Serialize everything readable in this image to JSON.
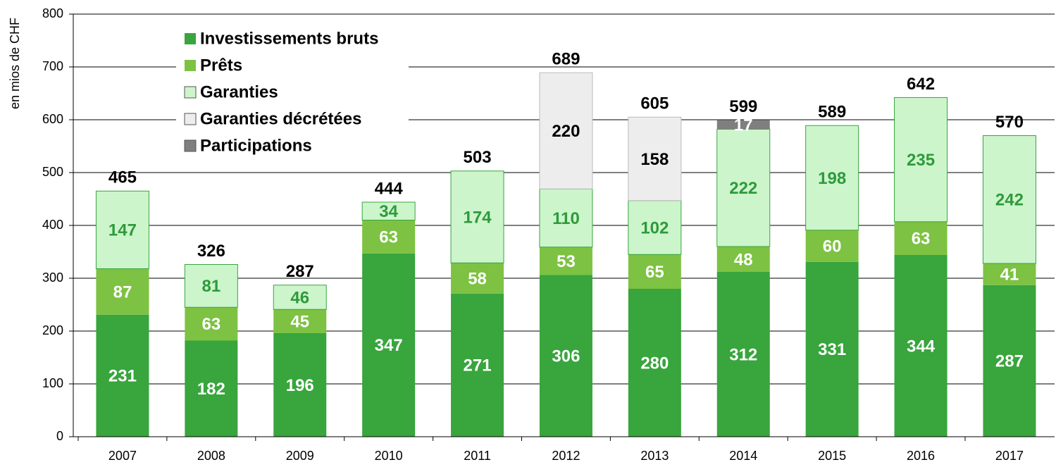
{
  "chart_data": {
    "type": "stacked_bar",
    "y_label": "en mios de CHF",
    "categories": [
      "2007",
      "2008",
      "2009",
      "2010",
      "2011",
      "2012",
      "2013",
      "2014",
      "2015",
      "2016",
      "2017"
    ],
    "series": [
      {
        "name": "Investissements bruts",
        "color": "#38a53d",
        "label_color": "#ffffff",
        "values": [
          231,
          182,
          196,
          347,
          271,
          306,
          280,
          312,
          331,
          344,
          287
        ]
      },
      {
        "name": "Prêts",
        "color": "#7dc242",
        "label_color": "#ffffff",
        "values": [
          87,
          63,
          45,
          63,
          58,
          53,
          65,
          48,
          60,
          63,
          41
        ]
      },
      {
        "name": "Garanties",
        "color": "#ccf5cc",
        "label_color": "#2f9a3a",
        "values": [
          147,
          81,
          46,
          34,
          174,
          110,
          102,
          222,
          198,
          235,
          242
        ]
      },
      {
        "name": "Garanties décrétées",
        "color": "#ededed",
        "label_color": "#000000",
        "values": [
          null,
          null,
          null,
          null,
          null,
          220,
          158,
          null,
          null,
          null,
          null
        ]
      },
      {
        "name": "Participations",
        "color": "#7f7f7f",
        "label_color": "#ffffff",
        "values": [
          null,
          null,
          null,
          null,
          null,
          null,
          null,
          17,
          null,
          null,
          null
        ]
      }
    ],
    "totals": [
      465,
      326,
      287,
      444,
      503,
      689,
      605,
      599,
      589,
      642,
      570
    ],
    "ylim": [
      0,
      800
    ],
    "yticks": [
      0,
      100,
      200,
      300,
      400,
      500,
      600,
      700,
      800
    ],
    "grid": true
  }
}
